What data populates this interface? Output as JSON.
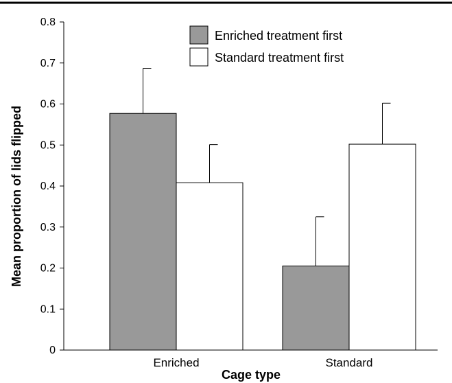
{
  "chart_data": {
    "type": "bar",
    "title": "",
    "xlabel": "Cage type",
    "ylabel": "Mean proportion of lids flipped",
    "ylim": [
      0,
      0.8
    ],
    "yticks": [
      "0",
      "0.1",
      "0.2",
      "0.3",
      "0.4",
      "0.5",
      "0.6",
      "0.7",
      "0.8"
    ],
    "categories": [
      "Enriched",
      "Standard"
    ],
    "legend_position": "top-right",
    "grid": false,
    "error_bars": "upper",
    "series": [
      {
        "name": "Enriched treatment first",
        "color": "#999999",
        "values": [
          0.577,
          0.205
        ],
        "errors": [
          0.11,
          0.12
        ]
      },
      {
        "name": "Standard treatment first",
        "color": "#ffffff",
        "values": [
          0.408,
          0.502
        ],
        "errors": [
          0.093,
          0.1
        ]
      }
    ]
  }
}
